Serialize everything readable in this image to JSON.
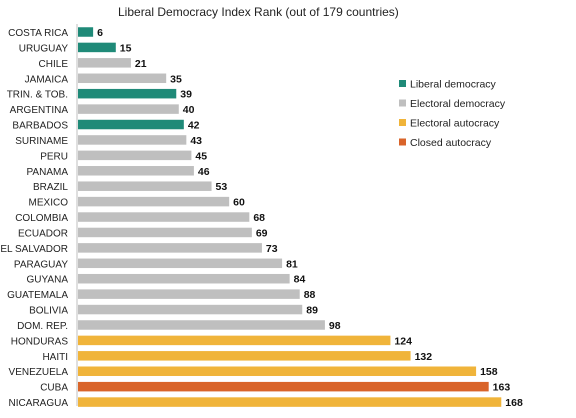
{
  "chart_data": {
    "type": "bar",
    "orientation": "horizontal",
    "title": "Liberal Democracy Index Rank (out of 179 countries)",
    "xlabel": "",
    "ylabel": "",
    "xlim": [
      0,
      179
    ],
    "grid": false,
    "legend_position": "right",
    "categories": [
      "COSTA RICA",
      "URUGUAY",
      "CHILE",
      "JAMAICA",
      "TRIN. & TOB.",
      "ARGENTINA",
      "BARBADOS",
      "SURINAME",
      "PERU",
      "PANAMA",
      "BRAZIL",
      "MEXICO",
      "COLOMBIA",
      "ECUADOR",
      "EL SALVADOR",
      "PARAGUAY",
      "GUYANA",
      "GUATEMALA",
      "BOLIVIA",
      "DOM. REP.",
      "HONDURAS",
      "HAITI",
      "VENEZUELA",
      "CUBA",
      "NICARAGUA"
    ],
    "values": [
      6,
      15,
      21,
      35,
      39,
      40,
      42,
      43,
      45,
      46,
      53,
      60,
      68,
      69,
      73,
      81,
      84,
      88,
      89,
      98,
      124,
      132,
      158,
      163,
      168
    ],
    "regime": [
      "Liberal democracy",
      "Liberal democracy",
      "Electoral democracy",
      "Electoral democracy",
      "Liberal democracy",
      "Electoral democracy",
      "Liberal democracy",
      "Electoral democracy",
      "Electoral democracy",
      "Electoral democracy",
      "Electoral democracy",
      "Electoral democracy",
      "Electoral democracy",
      "Electoral democracy",
      "Electoral democracy",
      "Electoral democracy",
      "Electoral democracy",
      "Electoral democracy",
      "Electoral democracy",
      "Electoral democracy",
      "Electoral autocracy",
      "Electoral autocracy",
      "Electoral autocracy",
      "Closed autocracy",
      "Electoral autocracy"
    ],
    "legend": [
      {
        "name": "Liberal democracy",
        "color": "#1f8a78"
      },
      {
        "name": "Electoral democracy",
        "color": "#bfbfbf"
      },
      {
        "name": "Electoral autocracy",
        "color": "#f0b43a"
      },
      {
        "name": "Closed autocracy",
        "color": "#d9642a"
      }
    ]
  }
}
